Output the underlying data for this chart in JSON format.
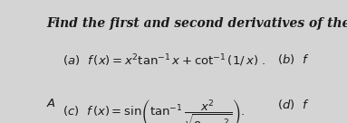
{
  "title": "Find the first and second derivatives of the following functions",
  "bg_color": "#d4d4d4",
  "text_color": "#1a1a1a",
  "title_fontsize": 10.0,
  "body_fontsize": 9.5
}
